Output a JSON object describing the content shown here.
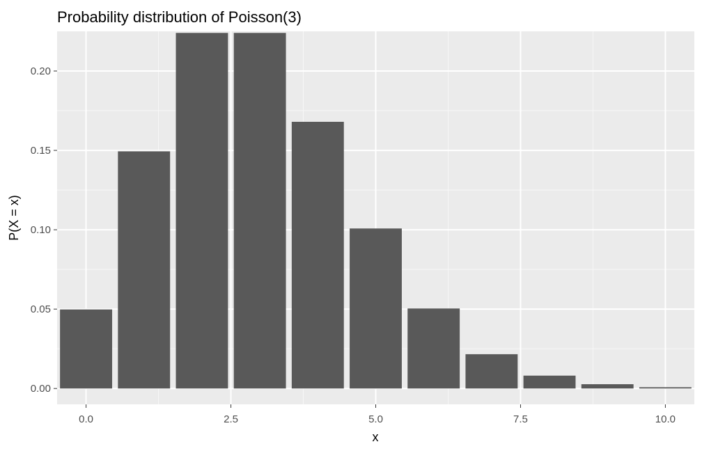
{
  "chart_data": {
    "type": "bar",
    "title": "Probability distribution of Poisson(3)",
    "xlabel": "x",
    "ylabel": "P(X = x)",
    "x": [
      0,
      1,
      2,
      3,
      4,
      5,
      6,
      7,
      8,
      9,
      10
    ],
    "values": [
      0.0498,
      0.1494,
      0.224,
      0.224,
      0.168,
      0.1008,
      0.0504,
      0.0216,
      0.0081,
      0.0027,
      0.0008
    ],
    "xlim": [
      -0.5,
      10.5
    ],
    "ylim": [
      -0.01,
      0.225
    ],
    "x_ticks": [
      0,
      2.5,
      5,
      7.5,
      10
    ],
    "x_tick_labels": [
      "0.0",
      "2.5",
      "5.0",
      "7.5",
      "10.0"
    ],
    "y_ticks": [
      0,
      0.05,
      0.1,
      0.15,
      0.2
    ],
    "y_tick_labels": [
      "0.00",
      "0.05",
      "0.10",
      "0.15",
      "0.20"
    ],
    "grid": true,
    "legend": "none",
    "colors": {
      "bar": "#595959",
      "panel_background": "#ebebeb",
      "grid_major": "#ffffff",
      "grid_minor": "#f7f7f7",
      "tick_label": "#4d4d4d",
      "tick_mark": "#333333"
    }
  }
}
